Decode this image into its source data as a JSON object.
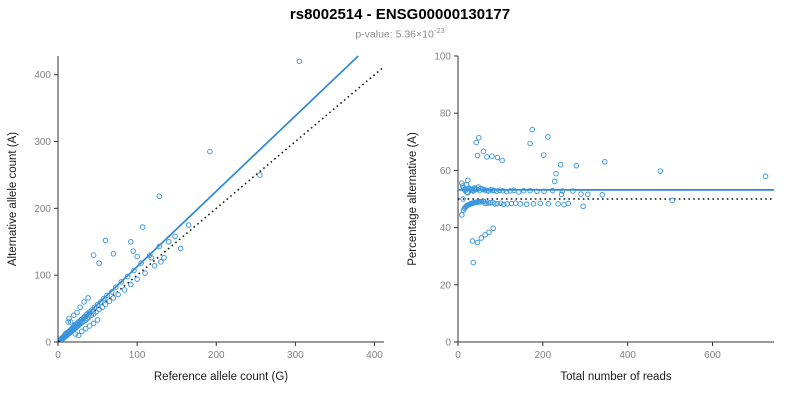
{
  "header": {
    "title": "rs8002514 - ENSG00000130177",
    "subtitle_prefix": "p-value: 5.36×10",
    "subtitle_exponent": "-23"
  },
  "colors": {
    "point_blue": "#3A96DD",
    "line_blue": "#2F87D4",
    "dotted_black": "#111111",
    "axis": "#333333",
    "tick_label": "#808080",
    "axis_title": "#1a1a1a"
  },
  "chart_data": {
    "type": "scatter",
    "title": "rs8002514 - ENSG00000130177",
    "subtitle": "p-value: 5.36e-23",
    "points_ref_alt": [
      [
        4,
        5
      ],
      [
        5,
        4
      ],
      [
        5,
        6
      ],
      [
        6,
        6
      ],
      [
        6,
        7
      ],
      [
        7,
        6
      ],
      [
        7,
        8
      ],
      [
        8,
        7
      ],
      [
        8,
        9
      ],
      [
        9,
        8
      ],
      [
        9,
        11
      ],
      [
        10,
        9
      ],
      [
        10,
        11
      ],
      [
        10,
        13
      ],
      [
        11,
        10
      ],
      [
        11,
        12
      ],
      [
        12,
        11
      ],
      [
        12,
        14
      ],
      [
        13,
        12
      ],
      [
        13,
        15
      ],
      [
        14,
        13
      ],
      [
        14,
        16
      ],
      [
        15,
        14
      ],
      [
        15,
        17
      ],
      [
        16,
        15
      ],
      [
        16,
        18
      ],
      [
        17,
        16
      ],
      [
        17,
        19
      ],
      [
        18,
        17
      ],
      [
        18,
        21
      ],
      [
        19,
        18
      ],
      [
        19,
        22
      ],
      [
        20,
        19
      ],
      [
        20,
        23
      ],
      [
        21,
        20
      ],
      [
        21,
        24
      ],
      [
        22,
        21
      ],
      [
        22,
        26
      ],
      [
        23,
        22
      ],
      [
        24,
        23
      ],
      [
        24,
        27
      ],
      [
        25,
        24
      ],
      [
        25,
        29
      ],
      [
        26,
        25
      ],
      [
        27,
        26
      ],
      [
        27,
        31
      ],
      [
        28,
        27
      ],
      [
        29,
        33
      ],
      [
        30,
        29
      ],
      [
        30,
        34
      ],
      [
        31,
        30
      ],
      [
        32,
        36
      ],
      [
        33,
        31
      ],
      [
        34,
        38
      ],
      [
        35,
        33
      ],
      [
        36,
        41
      ],
      [
        37,
        35
      ],
      [
        38,
        43
      ],
      [
        39,
        37
      ],
      [
        40,
        45
      ],
      [
        42,
        40
      ],
      [
        43,
        48
      ],
      [
        45,
        42
      ],
      [
        46,
        52
      ],
      [
        48,
        45
      ],
      [
        50,
        56
      ],
      [
        52,
        49
      ],
      [
        54,
        60
      ],
      [
        56,
        52
      ],
      [
        58,
        65
      ],
      [
        60,
        56
      ],
      [
        62,
        70
      ],
      [
        65,
        61
      ],
      [
        68,
        75
      ],
      [
        70,
        66
      ],
      [
        73,
        82
      ],
      [
        76,
        71
      ],
      [
        80,
        90
      ],
      [
        84,
        78
      ],
      [
        88,
        98
      ],
      [
        92,
        86
      ],
      [
        96,
        107
      ],
      [
        100,
        94
      ],
      [
        105,
        118
      ],
      [
        110,
        103
      ],
      [
        116,
        130
      ],
      [
        122,
        114
      ],
      [
        128,
        143
      ],
      [
        134,
        126
      ],
      [
        26,
        10
      ],
      [
        22,
        12
      ],
      [
        30,
        16
      ],
      [
        16,
        30
      ],
      [
        13,
        30
      ],
      [
        14,
        35
      ],
      [
        20,
        40
      ],
      [
        35,
        20
      ],
      [
        40,
        24
      ],
      [
        28,
        52
      ],
      [
        24,
        44
      ],
      [
        45,
        28
      ],
      [
        33,
        60
      ],
      [
        50,
        33
      ],
      [
        38,
        66
      ],
      [
        305,
        420
      ],
      [
        192,
        285
      ],
      [
        128,
        218
      ],
      [
        107,
        172
      ],
      [
        60,
        152
      ],
      [
        45,
        130
      ],
      [
        52,
        118
      ],
      [
        70,
        132
      ],
      [
        92,
        150
      ],
      [
        95,
        136
      ],
      [
        140,
        150
      ],
      [
        148,
        158
      ],
      [
        155,
        140
      ],
      [
        165,
        175
      ],
      [
        255,
        250
      ],
      [
        100,
        128
      ],
      [
        118,
        126
      ],
      [
        130,
        120
      ]
    ],
    "charts": [
      {
        "name": "left",
        "xlabel": "Reference allele count (G)",
        "ylabel": "Alternative allele count (A)",
        "xlim": [
          0,
          412
        ],
        "ylim": [
          0,
          428
        ],
        "xticks": [
          0,
          100,
          200,
          300,
          400
        ],
        "yticks": [
          0,
          100,
          200,
          300,
          400
        ],
        "point_transform": "identity",
        "lines": [
          {
            "style": "solid",
            "slope": 1.128,
            "intercept": 0,
            "color": "#2F87D4"
          },
          {
            "style": "dotted",
            "slope": 1,
            "intercept": 0,
            "color": "#111111"
          }
        ]
      },
      {
        "name": "right",
        "xlabel": "Total number of reads",
        "ylabel": "Percentage alternative (A)",
        "xlim": [
          0,
          745
        ],
        "ylim": [
          0,
          100
        ],
        "xticks": [
          0,
          200,
          400,
          600
        ],
        "yticks": [
          0,
          20,
          40,
          60,
          80,
          100
        ],
        "point_transform": "total_pct",
        "lines": [
          {
            "style": "solid",
            "y": 53.2,
            "color": "#2F87D4"
          },
          {
            "style": "dotted",
            "y": 50,
            "color": "#111111"
          }
        ]
      }
    ],
    "legend": null,
    "grid": false
  }
}
